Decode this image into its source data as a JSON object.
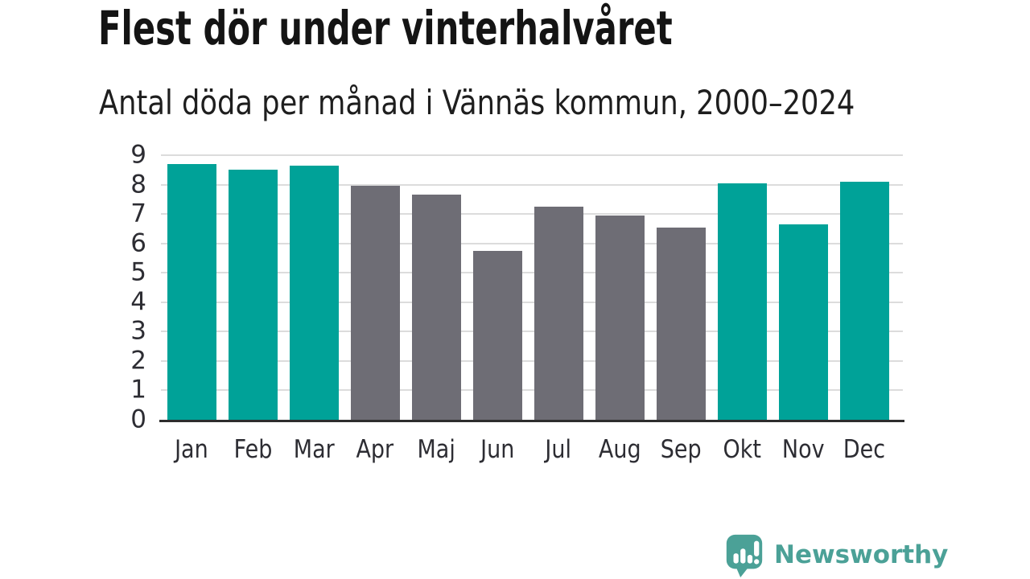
{
  "header": {
    "title": "Flest dör under vinterhalvåret",
    "subtitle": "Antal döda per månad i Vännäs kommun, 2000–2024"
  },
  "chart_data": {
    "type": "bar",
    "title": "Flest dör under vinterhalvåret",
    "subtitle": "Antal döda per månad i Vännäs kommun, 2000–2024",
    "categories": [
      "Jan",
      "Feb",
      "Mar",
      "Apr",
      "Maj",
      "Jun",
      "Jul",
      "Aug",
      "Sep",
      "Okt",
      "Nov",
      "Dec"
    ],
    "values": [
      8.7,
      8.5,
      8.65,
      7.95,
      7.65,
      5.75,
      7.25,
      6.95,
      6.55,
      8.05,
      6.65,
      8.1
    ],
    "highlighted": [
      true,
      true,
      true,
      false,
      false,
      false,
      false,
      false,
      false,
      true,
      true,
      true
    ],
    "xlabel": "",
    "ylabel": "",
    "ylim": [
      0,
      9
    ],
    "yticks": [
      0,
      1,
      2,
      3,
      4,
      5,
      6,
      7,
      8,
      9
    ],
    "grid": true,
    "legend": "none",
    "colors": {
      "highlight": "#00a298",
      "muted": "#6e6d75",
      "gridline": "#dcdcdc",
      "axis_line": "#2d2d2d",
      "tick_text": "#2d2d33"
    }
  },
  "footer": {
    "brand": "Newsworthy",
    "brand_color": "#4ba197",
    "logo_icon": "bar-chart-speech-bubble"
  }
}
